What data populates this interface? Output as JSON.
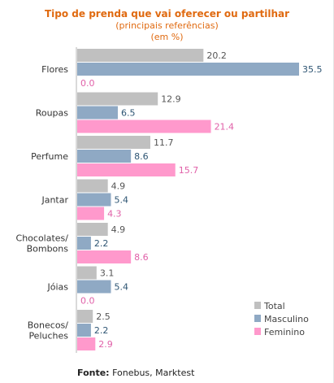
{
  "chart_data": {
    "type": "bar",
    "orientation": "horizontal",
    "title": "Tipo de prenda que vai oferecer ou partilhar",
    "subtitle": "(principais referências)",
    "unit_note": "(em %)",
    "categories": [
      [
        "Flores"
      ],
      [
        "Roupas"
      ],
      [
        "Perfume"
      ],
      [
        "Jantar"
      ],
      [
        "Chocolates/",
        "Bombons"
      ],
      [
        "Jóias"
      ],
      [
        "Bonecos/",
        "Peluches"
      ]
    ],
    "series": [
      {
        "name": "Total",
        "color": "#c0c0c0",
        "label_color": "#555555",
        "values": [
          20.2,
          12.9,
          11.7,
          4.9,
          4.9,
          3.1,
          2.5
        ],
        "labels": [
          "20.2",
          "12.9",
          "11.7",
          "4.9",
          "4.9",
          "3.1",
          "2.5"
        ]
      },
      {
        "name": "Masculino",
        "color": "#8fa9c4",
        "label_color": "#2e5573",
        "values": [
          35.5,
          6.5,
          8.6,
          5.4,
          2.2,
          5.4,
          2.2
        ],
        "labels": [
          "35.5",
          "6.5",
          "8.6",
          "5.4",
          "2.2",
          "5.4",
          "2.2"
        ]
      },
      {
        "name": "Feminino",
        "color": "#ff99cc",
        "label_color": "#e060a8",
        "values": [
          0.0,
          21.4,
          15.7,
          4.3,
          8.6,
          0.0,
          2.9
        ],
        "labels": [
          "0.0",
          "21.4",
          "15.7",
          "4.3",
          "8.6",
          "0.0",
          "2.9"
        ]
      }
    ],
    "xlim": [
      0,
      35.5
    ],
    "grid": false,
    "legend_position": "bottom-right",
    "source_label": "Fonte:",
    "source_text": " Fonebus, Marktest"
  }
}
